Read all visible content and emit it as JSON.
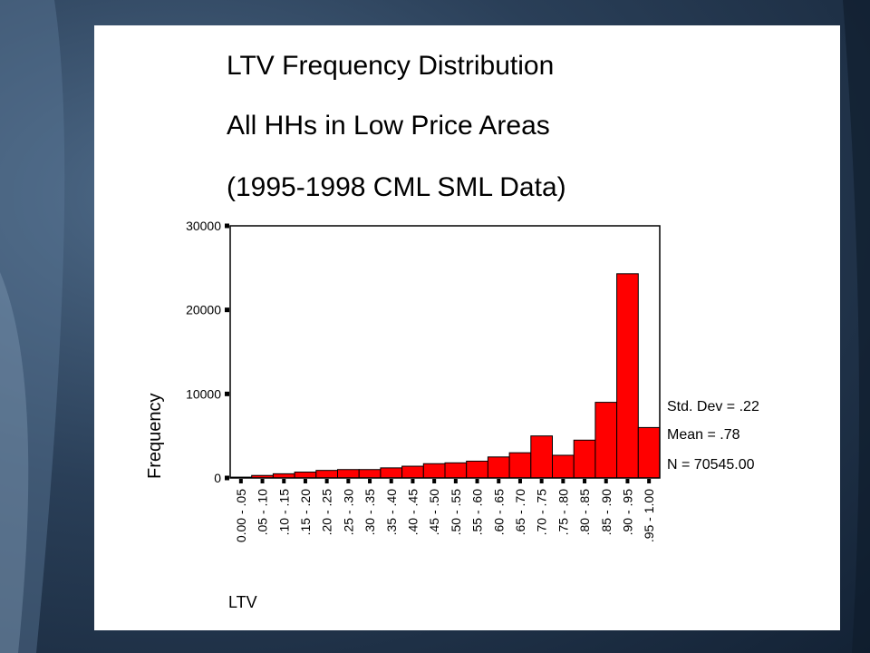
{
  "slide": {
    "title_lines": [
      "LTV Frequency Distribution",
      "All HHs in Low Price Areas",
      "(1995-1998 CML SML Data)"
    ],
    "stats": [
      "Std. Dev = .22",
      "Mean = .78",
      "N = 70545.00"
    ]
  },
  "colors": {
    "bar_fill": "#ff0000",
    "bar_stroke": "#000000",
    "panel": "#ffffff"
  },
  "chart_data": {
    "type": "bar",
    "xlabel": "LTV",
    "ylabel": "Frequency",
    "ylim": [
      0,
      30000
    ],
    "yticks": [
      0,
      10000,
      20000,
      30000
    ],
    "grid": false,
    "categories": [
      "0.00 - .05",
      ".05 - .10",
      ".10 - .15",
      ".15 - .20",
      ".20 - .25",
      ".25 - .30",
      ".30 - .35",
      ".35 - .40",
      ".40 - .45",
      ".45 - .50",
      ".50 - .55",
      ".55 - .60",
      ".60 - .65",
      ".65 - .70",
      ".70 - .75",
      ".75 - .80",
      ".80 - .85",
      ".85 - .90",
      ".90 - .95",
      ".95 - 1.00"
    ],
    "values": [
      100,
      300,
      500,
      700,
      900,
      1000,
      1000,
      1200,
      1400,
      1700,
      1800,
      2000,
      2500,
      3000,
      5000,
      2700,
      4500,
      9000,
      24300,
      6000
    ]
  }
}
